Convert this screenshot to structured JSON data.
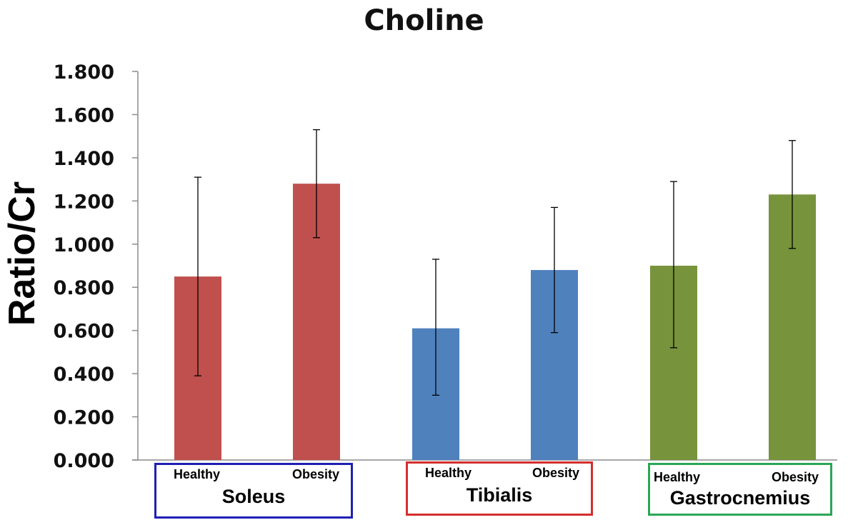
{
  "chart_data": {
    "type": "bar",
    "title": "Choline",
    "xlabel": "",
    "ylabel": "Ratio/Cr",
    "ylim": [
      0,
      1.8
    ],
    "yticks": [
      "0.000",
      "0.200",
      "0.400",
      "0.600",
      "0.800",
      "1.000",
      "1.200",
      "1.400",
      "1.600",
      "1.800"
    ],
    "grid": false,
    "groups": [
      {
        "name": "Soleus",
        "bar_color": "#c0504d",
        "box_color": "#1f1fb4",
        "bars": [
          {
            "label": "Healthy",
            "value": 0.85,
            "err_low": 0.39,
            "err_high": 1.31
          },
          {
            "label": "Obesity",
            "value": 1.28,
            "err_low": 1.03,
            "err_high": 1.53
          }
        ]
      },
      {
        "name": "Tibialis",
        "bar_color": "#4f81bd",
        "box_color": "#d42e2e",
        "bars": [
          {
            "label": "Healthy",
            "value": 0.61,
            "err_low": 0.3,
            "err_high": 0.93
          },
          {
            "label": "Obesity",
            "value": 0.88,
            "err_low": 0.59,
            "err_high": 1.17
          }
        ]
      },
      {
        "name": "Gastrocnemius",
        "bar_color": "#77933c",
        "box_color": "#2aa655",
        "bars": [
          {
            "label": "Healthy",
            "value": 0.9,
            "err_low": 0.52,
            "err_high": 1.29
          },
          {
            "label": "Obesity",
            "value": 1.23,
            "err_low": 0.98,
            "err_high": 1.48
          }
        ]
      }
    ]
  }
}
